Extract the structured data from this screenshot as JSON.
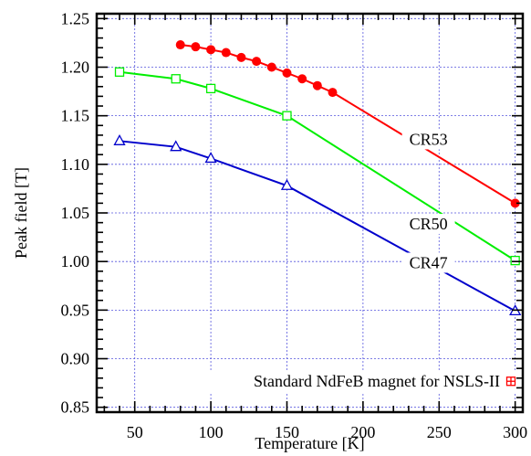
{
  "chart_data": {
    "type": "line",
    "title": "",
    "xlabel": "Temperature [K]",
    "ylabel": "Peak field [T]",
    "xlim": [
      25,
      305
    ],
    "ylim": [
      0.845,
      1.255
    ],
    "x_ticks": [
      50,
      100,
      150,
      200,
      250,
      300
    ],
    "y_ticks": [
      0.85,
      0.9,
      0.95,
      1.0,
      1.05,
      1.1,
      1.15,
      1.2,
      1.25
    ],
    "x_tick_labels": [
      "50",
      "100",
      "150",
      "200",
      "250",
      "300"
    ],
    "y_tick_labels": [
      "0.85",
      "0.90",
      "0.95",
      "1.00",
      "1.05",
      "1.10",
      "1.15",
      "1.20",
      "1.25"
    ],
    "grid": true,
    "series": [
      {
        "name": "CR53",
        "color": "#ff0000",
        "marker": "filled-circle",
        "x": [
          80,
          90,
          100,
          110,
          120,
          130,
          140,
          150,
          160,
          170,
          180,
          300
        ],
        "y": [
          1.223,
          1.221,
          1.218,
          1.215,
          1.21,
          1.206,
          1.2,
          1.194,
          1.188,
          1.181,
          1.174,
          1.06
        ]
      },
      {
        "name": "CR50",
        "color": "#00ee00",
        "marker": "open-square",
        "x": [
          40,
          77,
          100,
          150,
          300
        ],
        "y": [
          1.195,
          1.188,
          1.178,
          1.15,
          1.001
        ]
      },
      {
        "name": "CR47",
        "color": "#0000cc",
        "marker": "open-triangle",
        "x": [
          40,
          77,
          100,
          150,
          300
        ],
        "y": [
          1.124,
          1.118,
          1.106,
          1.078,
          0.949
        ]
      }
    ],
    "annotations": [
      {
        "text": "CR53",
        "x": 243,
        "y": 1.122
      },
      {
        "text": "CR50",
        "x": 243,
        "y": 1.035
      },
      {
        "text": "CR47",
        "x": 243,
        "y": 0.995
      }
    ],
    "legend": {
      "text": "Standard NdFeB magnet for NSLS-II",
      "position": "bottom-right",
      "color": "#ff0000"
    }
  }
}
